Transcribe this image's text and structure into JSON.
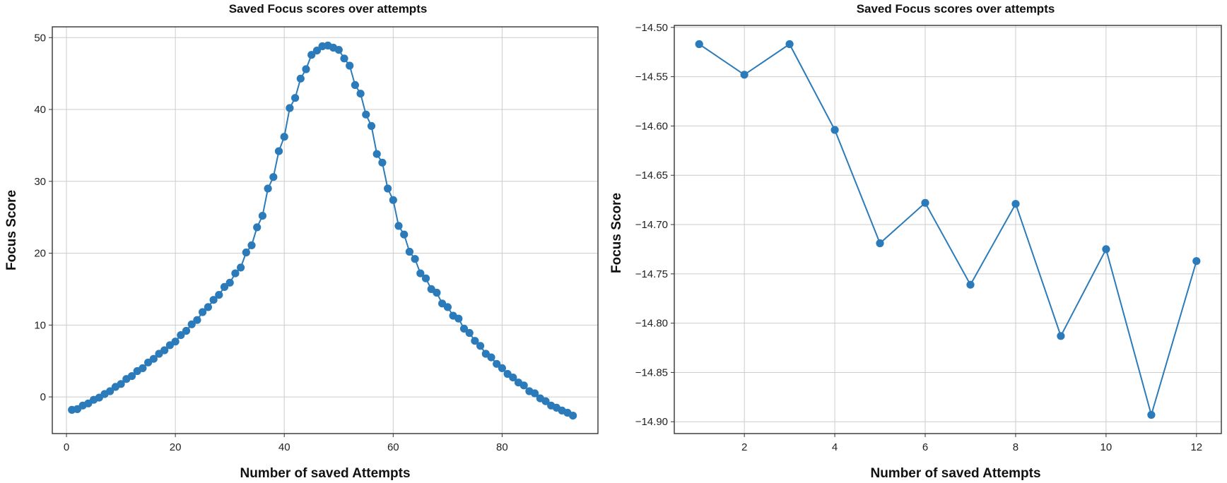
{
  "chart_data": [
    {
      "type": "line",
      "title": "Saved Focus scores over attempts",
      "xlabel": "Number of saved Attempts",
      "ylabel": "Focus Score",
      "xlim": [
        -2.6,
        97.6
      ],
      "ylim": [
        -5.1,
        51.5
      ],
      "xticks": [
        0,
        20,
        40,
        60,
        80
      ],
      "yticks": [
        0,
        10,
        20,
        30,
        40,
        50
      ],
      "grid": true,
      "color": "#2b7bba",
      "series": [
        {
          "name": "Focus Score",
          "x": [
            1,
            2,
            3,
            4,
            5,
            6,
            7,
            8,
            9,
            10,
            11,
            12,
            13,
            14,
            15,
            16,
            17,
            18,
            19,
            20,
            21,
            22,
            23,
            24,
            25,
            26,
            27,
            28,
            29,
            30,
            31,
            32,
            33,
            34,
            35,
            36,
            37,
            38,
            39,
            40,
            41,
            42,
            43,
            44,
            45,
            46,
            47,
            48,
            49,
            50,
            51,
            52,
            53,
            54,
            55,
            56,
            57,
            58,
            59,
            60,
            61,
            62,
            63,
            64,
            65,
            66,
            67,
            68,
            69,
            70,
            71,
            72,
            73,
            74,
            75,
            76,
            77,
            78,
            79,
            80,
            81,
            82,
            83,
            84,
            85,
            86,
            87,
            88,
            89,
            90,
            91,
            92,
            93
          ],
          "values": [
            -1.8,
            -1.7,
            -1.2,
            -0.9,
            -0.4,
            -0.1,
            0.4,
            0.8,
            1.4,
            1.8,
            2.5,
            2.9,
            3.6,
            4.0,
            4.8,
            5.3,
            6.0,
            6.5,
            7.2,
            7.7,
            8.6,
            9.2,
            10.1,
            10.7,
            11.8,
            12.5,
            13.5,
            14.2,
            15.3,
            15.9,
            17.2,
            18.0,
            20.1,
            21.1,
            23.6,
            25.2,
            29.0,
            30.6,
            34.2,
            36.2,
            40.2,
            41.6,
            44.3,
            45.6,
            47.6,
            48.2,
            48.8,
            48.9,
            48.6,
            48.3,
            47.1,
            46.1,
            43.4,
            42.2,
            39.3,
            37.7,
            33.8,
            32.6,
            29.0,
            27.4,
            23.8,
            22.6,
            20.2,
            19.2,
            17.2,
            16.5,
            15.0,
            14.5,
            13.0,
            12.5,
            11.3,
            10.9,
            9.5,
            8.9,
            7.8,
            7.1,
            6.0,
            5.5,
            4.6,
            4.0,
            3.2,
            2.7,
            2.0,
            1.6,
            0.8,
            0.5,
            -0.2,
            -0.6,
            -1.2,
            -1.5,
            -1.9,
            -2.2,
            -2.6
          ]
        }
      ]
    },
    {
      "type": "line",
      "title": "Saved Focus scores over attempts",
      "xlabel": "Number of saved Attempts",
      "ylabel": "Focus Score",
      "xlim": [
        0.45,
        12.55
      ],
      "ylim": [
        -14.912,
        -14.498
      ],
      "xticks": [
        2,
        4,
        6,
        8,
        10,
        12
      ],
      "yticks": [
        -14.5,
        -14.55,
        -14.6,
        -14.65,
        -14.7,
        -14.75,
        -14.8,
        -14.85,
        -14.9
      ],
      "ytick_labels": [
        "−14.50",
        "−14.55",
        "−14.60",
        "−14.65",
        "−14.70",
        "−14.75",
        "−14.80",
        "−14.85",
        "−14.90"
      ],
      "grid": true,
      "color": "#2b7bba",
      "series": [
        {
          "name": "Focus Score",
          "x": [
            1,
            2,
            3,
            4,
            5,
            6,
            7,
            8,
            9,
            10,
            11,
            12
          ],
          "values": [
            -14.517,
            -14.548,
            -14.517,
            -14.604,
            -14.719,
            -14.678,
            -14.761,
            -14.679,
            -14.813,
            -14.725,
            -14.893,
            -14.737
          ]
        }
      ]
    }
  ]
}
